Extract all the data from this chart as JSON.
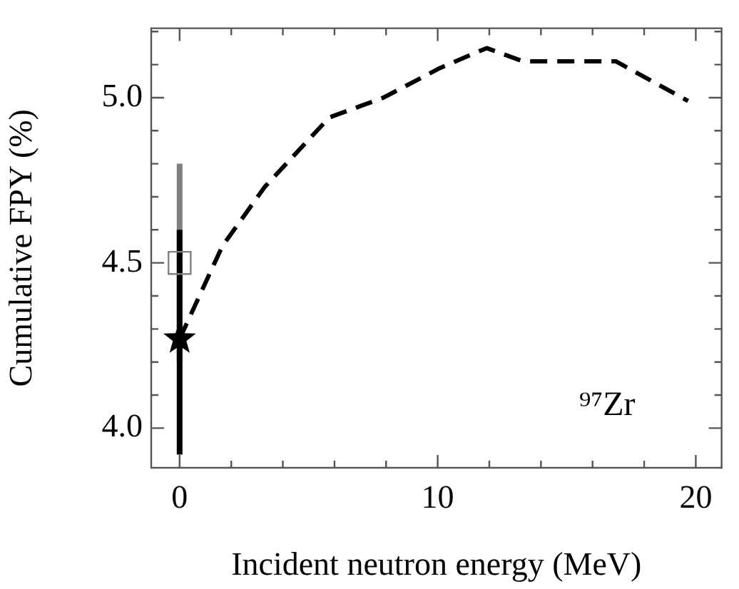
{
  "chart_data": {
    "type": "line",
    "xlabel": "Incident neutron energy (MeV)",
    "ylabel": "Cumulative FPY (%)",
    "annotations": [
      "⁹⁷Zr"
    ],
    "xlim": [
      -1.1,
      21
    ],
    "ylim": [
      3.88,
      5.21
    ],
    "xticks": [
      {
        "value": 0,
        "label": "0"
      },
      {
        "value": 2,
        "label": null
      },
      {
        "value": 4,
        "label": null
      },
      {
        "value": 6,
        "label": null
      },
      {
        "value": 8,
        "label": null
      },
      {
        "value": 10,
        "label": "10"
      },
      {
        "value": 12,
        "label": null
      },
      {
        "value": 14,
        "label": null
      },
      {
        "value": 16,
        "label": null
      },
      {
        "value": 18,
        "label": null
      },
      {
        "value": 20,
        "label": "20"
      }
    ],
    "yticks": [
      {
        "value": 4.0,
        "label": "4.0"
      },
      {
        "value": 4.1,
        "label": null
      },
      {
        "value": 4.2,
        "label": null
      },
      {
        "value": 4.3,
        "label": null
      },
      {
        "value": 4.4,
        "label": null
      },
      {
        "value": 4.5,
        "label": "4.5"
      },
      {
        "value": 4.6,
        "label": null
      },
      {
        "value": 4.7,
        "label": null
      },
      {
        "value": 4.8,
        "label": null
      },
      {
        "value": 4.9,
        "label": null
      },
      {
        "value": 5.0,
        "label": "5.0"
      },
      {
        "value": 5.1,
        "label": null
      },
      {
        "value": 5.2,
        "label": null
      }
    ],
    "grid": false,
    "legend": false,
    "series": [
      {
        "color": "#000000",
        "marker": "none",
        "line_style": "dashed",
        "x": [
          0,
          1.65,
          3.3,
          5.8,
          7.9,
          10.1,
          11.9,
          13.3,
          16.9,
          19.7
        ],
        "values": [
          4.27,
          4.55,
          4.73,
          4.94,
          5.0,
          5.09,
          5.15,
          5.11,
          5.11,
          4.99
        ]
      },
      {
        "type": "scatter",
        "color": "#808080",
        "marker": "square",
        "x": [
          0
        ],
        "values": [
          4.5
        ],
        "errors": [
          0.3
        ]
      },
      {
        "type": "scatter",
        "color": "#000000",
        "marker": "star",
        "x": [
          0
        ],
        "values": [
          4.27
        ],
        "errors": [
          [
            3.92,
            4.6
          ]
        ]
      }
    ]
  }
}
